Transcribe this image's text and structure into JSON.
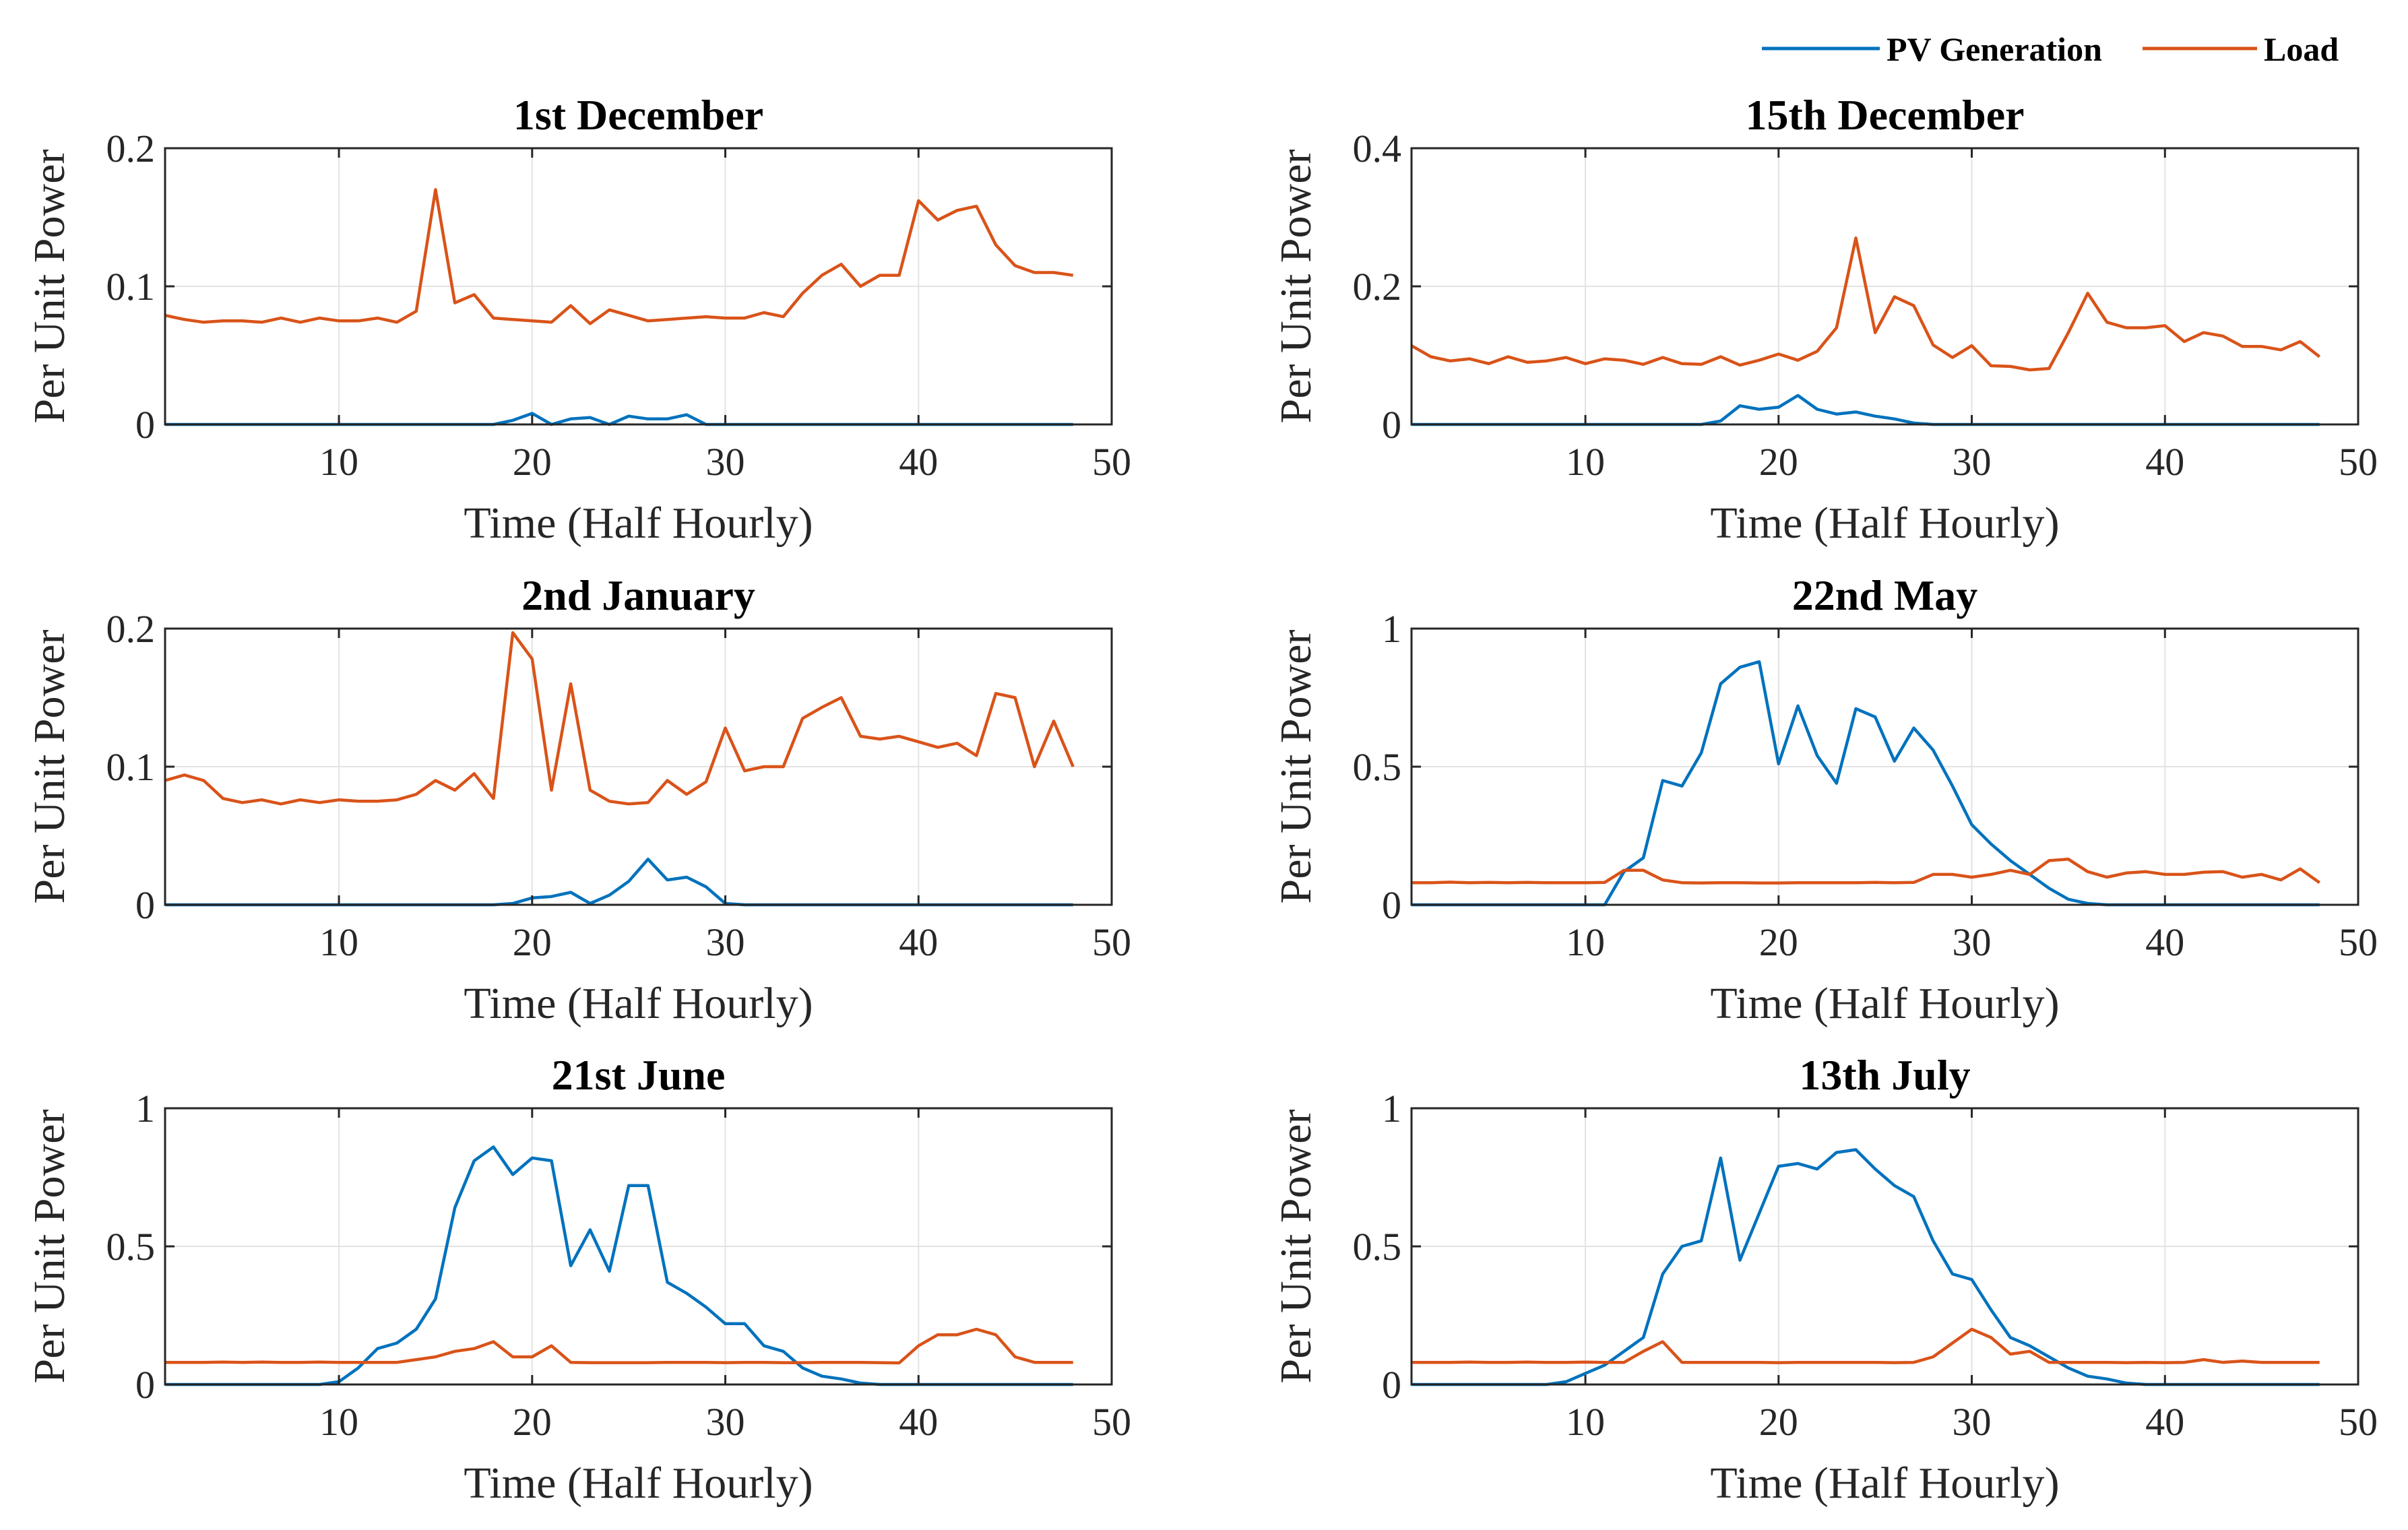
{
  "legend": {
    "entries": [
      {
        "label": "PV Generation",
        "color": "#0072BD"
      },
      {
        "label": "Load",
        "color": "#D95319"
      }
    ]
  },
  "chart_data": [
    {
      "type": "line",
      "title": "1st December",
      "xlabel": "Time (Half Hourly)",
      "ylabel": "Per Unit Power",
      "xlim": [
        1,
        50
      ],
      "ylim": [
        0,
        0.2
      ],
      "xticks": [
        10,
        20,
        30,
        40,
        50
      ],
      "yticks": [
        0,
        0.1,
        0.2
      ],
      "ytick_labels": [
        "0",
        "0.1",
        "0.2"
      ],
      "grid": true,
      "series": [
        {
          "name": "PV Generation",
          "color": "#0072BD",
          "values": [
            0,
            0,
            0,
            0,
            0,
            0,
            0,
            0,
            0,
            0,
            0,
            0,
            0,
            0,
            0,
            0,
            0,
            0,
            0.003,
            0.008,
            0,
            0.004,
            0.005,
            0,
            0.006,
            0.004,
            0.004,
            0.007,
            0,
            0,
            0,
            0,
            0,
            0,
            0,
            0,
            0,
            0,
            0,
            0,
            0,
            0,
            0,
            0,
            0,
            0,
            0,
            0
          ]
        },
        {
          "name": "Load",
          "color": "#D95319",
          "values": [
            0.079,
            0.076,
            0.074,
            0.075,
            0.075,
            0.074,
            0.077,
            0.074,
            0.077,
            0.075,
            0.075,
            0.077,
            0.074,
            0.082,
            0.17,
            0.088,
            0.094,
            0.077,
            0.076,
            0.075,
            0.074,
            0.086,
            0.073,
            0.083,
            0.079,
            0.075,
            0.076,
            0.077,
            0.078,
            0.077,
            0.077,
            0.081,
            0.078,
            0.095,
            0.108,
            0.116,
            0.1,
            0.108,
            0.108,
            0.162,
            0.148,
            0.155,
            0.158,
            0.13,
            0.115,
            0.11,
            0.11,
            0.108
          ]
        }
      ]
    },
    {
      "type": "line",
      "title": "15th December",
      "xlabel": "Time (Half Hourly)",
      "ylabel": "Per Unit Power",
      "xlim": [
        1,
        50
      ],
      "ylim": [
        0,
        0.4
      ],
      "xticks": [
        10,
        20,
        30,
        40,
        50
      ],
      "yticks": [
        0,
        0.2,
        0.4
      ],
      "ytick_labels": [
        "0",
        "0.2",
        "0.4"
      ],
      "grid": true,
      "series": [
        {
          "name": "PV Generation",
          "color": "#0072BD",
          "values": [
            0,
            0,
            0,
            0,
            0,
            0,
            0,
            0,
            0,
            0,
            0,
            0,
            0,
            0,
            0,
            0,
            0.005,
            0.027,
            0.022,
            0.025,
            0.042,
            0.022,
            0.015,
            0.018,
            0.012,
            0.008,
            0.002,
            0,
            0,
            0,
            0,
            0,
            0,
            0,
            0,
            0,
            0,
            0,
            0,
            0,
            0,
            0,
            0,
            0,
            0,
            0,
            0,
            0
          ]
        },
        {
          "name": "Load",
          "color": "#D95319",
          "values": [
            0.114,
            0.098,
            0.092,
            0.095,
            0.088,
            0.098,
            0.09,
            0.092,
            0.097,
            0.088,
            0.095,
            0.093,
            0.087,
            0.097,
            0.088,
            0.087,
            0.098,
            0.086,
            0.093,
            0.102,
            0.093,
            0.106,
            0.14,
            0.27,
            0.133,
            0.185,
            0.172,
            0.115,
            0.097,
            0.114,
            0.085,
            0.084,
            0.079,
            0.081,
            0.133,
            0.19,
            0.148,
            0.14,
            0.14,
            0.143,
            0.12,
            0.133,
            0.128,
            0.113,
            0.113,
            0.108,
            0.12,
            0.098
          ]
        }
      ]
    },
    {
      "type": "line",
      "title": "2nd January",
      "xlabel": "Time (Half Hourly)",
      "ylabel": "Per Unit Power",
      "xlim": [
        1,
        50
      ],
      "ylim": [
        0,
        0.2
      ],
      "xticks": [
        10,
        20,
        30,
        40,
        50
      ],
      "yticks": [
        0,
        0.1,
        0.2
      ],
      "ytick_labels": [
        "0",
        "0.1",
        "0.2"
      ],
      "grid": true,
      "series": [
        {
          "name": "PV Generation",
          "color": "#0072BD",
          "values": [
            0,
            0,
            0,
            0,
            0,
            0,
            0,
            0,
            0,
            0,
            0,
            0,
            0,
            0,
            0,
            0,
            0,
            0,
            0.001,
            0.005,
            0.006,
            0.009,
            0.001,
            0.007,
            0.017,
            0.033,
            0.018,
            0.02,
            0.013,
            0.001,
            0,
            0,
            0,
            0,
            0,
            0,
            0,
            0,
            0,
            0,
            0,
            0,
            0,
            0,
            0,
            0,
            0,
            0
          ]
        },
        {
          "name": "Load",
          "color": "#D95319",
          "values": [
            0.09,
            0.094,
            0.09,
            0.077,
            0.074,
            0.076,
            0.073,
            0.076,
            0.074,
            0.076,
            0.075,
            0.075,
            0.076,
            0.08,
            0.09,
            0.083,
            0.095,
            0.077,
            0.197,
            0.178,
            0.083,
            0.16,
            0.083,
            0.075,
            0.073,
            0.074,
            0.09,
            0.08,
            0.089,
            0.128,
            0.097,
            0.1,
            0.1,
            0.135,
            0.143,
            0.15,
            0.122,
            0.12,
            0.122,
            0.118,
            0.114,
            0.117,
            0.108,
            0.153,
            0.15,
            0.1,
            0.133,
            0.1
          ]
        }
      ]
    },
    {
      "type": "line",
      "title": "22nd May",
      "xlabel": "Time (Half Hourly)",
      "ylabel": "Per Unit Power",
      "xlim": [
        1,
        50
      ],
      "ylim": [
        0,
        1
      ],
      "xticks": [
        10,
        20,
        30,
        40,
        50
      ],
      "yticks": [
        0,
        0.5,
        1
      ],
      "ytick_labels": [
        "0",
        "0.5",
        "1"
      ],
      "grid": true,
      "series": [
        {
          "name": "PV Generation",
          "color": "#0072BD",
          "values": [
            0,
            0,
            0,
            0,
            0,
            0,
            0,
            0,
            0,
            0,
            0,
            0.12,
            0.17,
            0.45,
            0.43,
            0.55,
            0.8,
            0.86,
            0.88,
            0.51,
            0.72,
            0.54,
            0.44,
            0.71,
            0.68,
            0.52,
            0.64,
            0.56,
            0.43,
            0.29,
            0.22,
            0.16,
            0.11,
            0.06,
            0.02,
            0.005,
            0,
            0,
            0,
            0,
            0,
            0,
            0,
            0,
            0,
            0,
            0,
            0
          ]
        },
        {
          "name": "Load",
          "color": "#D95319",
          "values": [
            0.08,
            0.08,
            0.082,
            0.08,
            0.081,
            0.08,
            0.081,
            0.08,
            0.08,
            0.08,
            0.081,
            0.125,
            0.125,
            0.09,
            0.08,
            0.079,
            0.08,
            0.08,
            0.079,
            0.079,
            0.08,
            0.08,
            0.08,
            0.08,
            0.081,
            0.08,
            0.081,
            0.11,
            0.11,
            0.1,
            0.11,
            0.125,
            0.11,
            0.16,
            0.165,
            0.12,
            0.1,
            0.115,
            0.12,
            0.11,
            0.11,
            0.118,
            0.12,
            0.1,
            0.11,
            0.09,
            0.13,
            0.08
          ]
        }
      ]
    },
    {
      "type": "line",
      "title": "21st June",
      "xlabel": "Time (Half Hourly)",
      "ylabel": "Per Unit Power",
      "xlim": [
        1,
        50
      ],
      "ylim": [
        0,
        1
      ],
      "xticks": [
        10,
        20,
        30,
        40,
        50
      ],
      "yticks": [
        0,
        0.5,
        1
      ],
      "ytick_labels": [
        "0",
        "0.5",
        "1"
      ],
      "grid": true,
      "series": [
        {
          "name": "PV Generation",
          "color": "#0072BD",
          "values": [
            0,
            0,
            0,
            0,
            0,
            0,
            0,
            0,
            0,
            0.01,
            0.06,
            0.13,
            0.15,
            0.2,
            0.31,
            0.64,
            0.81,
            0.86,
            0.76,
            0.82,
            0.81,
            0.43,
            0.56,
            0.41,
            0.72,
            0.72,
            0.37,
            0.33,
            0.28,
            0.22,
            0.22,
            0.14,
            0.12,
            0.06,
            0.03,
            0.02,
            0.005,
            0,
            0,
            0,
            0,
            0,
            0,
            0,
            0,
            0,
            0,
            0
          ]
        },
        {
          "name": "Load",
          "color": "#D95319",
          "values": [
            0.08,
            0.08,
            0.08,
            0.081,
            0.08,
            0.081,
            0.08,
            0.08,
            0.081,
            0.08,
            0.08,
            0.08,
            0.08,
            0.09,
            0.1,
            0.12,
            0.13,
            0.155,
            0.1,
            0.1,
            0.14,
            0.08,
            0.079,
            0.079,
            0.079,
            0.079,
            0.08,
            0.08,
            0.08,
            0.079,
            0.08,
            0.08,
            0.079,
            0.079,
            0.08,
            0.08,
            0.08,
            0.079,
            0.078,
            0.14,
            0.18,
            0.18,
            0.2,
            0.18,
            0.1,
            0.08,
            0.08,
            0.08
          ]
        }
      ]
    },
    {
      "type": "line",
      "title": "13th July",
      "xlabel": "Time (Half Hourly)",
      "ylabel": "Per Unit Power",
      "xlim": [
        1,
        50
      ],
      "ylim": [
        0,
        1
      ],
      "xticks": [
        10,
        20,
        30,
        40,
        50
      ],
      "yticks": [
        0,
        0.5,
        1
      ],
      "ytick_labels": [
        "0",
        "0.5",
        "1"
      ],
      "grid": true,
      "series": [
        {
          "name": "PV Generation",
          "color": "#0072BD",
          "values": [
            0,
            0,
            0,
            0,
            0,
            0,
            0,
            0,
            0.01,
            0.04,
            0.07,
            0.12,
            0.17,
            0.4,
            0.5,
            0.52,
            0.82,
            0.45,
            0.62,
            0.79,
            0.8,
            0.78,
            0.84,
            0.85,
            0.78,
            0.72,
            0.68,
            0.52,
            0.4,
            0.38,
            0.27,
            0.17,
            0.14,
            0.1,
            0.06,
            0.03,
            0.02,
            0.005,
            0,
            0,
            0,
            0,
            0,
            0,
            0,
            0,
            0,
            0
          ]
        },
        {
          "name": "Load",
          "color": "#D95319",
          "values": [
            0.08,
            0.08,
            0.08,
            0.081,
            0.08,
            0.08,
            0.081,
            0.08,
            0.08,
            0.081,
            0.08,
            0.08,
            0.12,
            0.155,
            0.08,
            0.08,
            0.08,
            0.08,
            0.08,
            0.079,
            0.08,
            0.08,
            0.08,
            0.08,
            0.08,
            0.079,
            0.08,
            0.1,
            0.15,
            0.2,
            0.17,
            0.11,
            0.12,
            0.08,
            0.08,
            0.08,
            0.08,
            0.079,
            0.08,
            0.079,
            0.08,
            0.09,
            0.08,
            0.085,
            0.08,
            0.08,
            0.08,
            0.08
          ]
        }
      ]
    }
  ]
}
